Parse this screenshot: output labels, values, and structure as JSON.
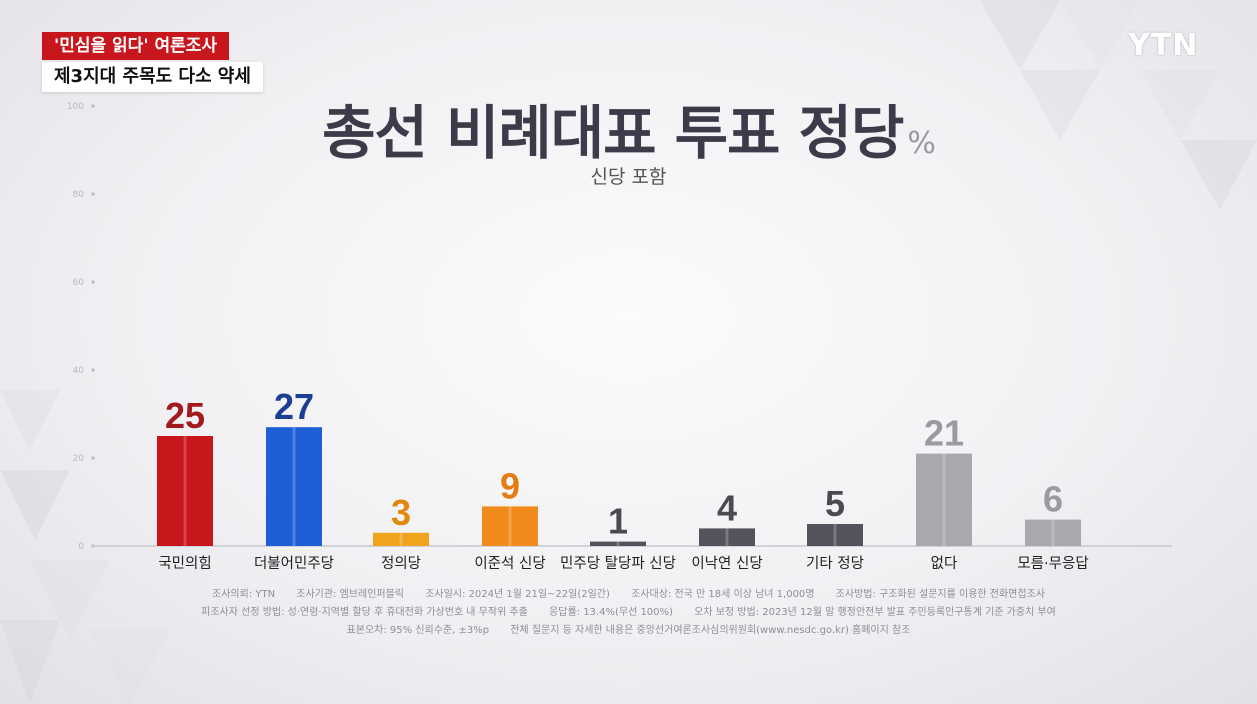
{
  "header": {
    "tag_primary": "'민심을 읽다' 여론조사",
    "tag_secondary": "제3지대 주목도 다소 약세",
    "logo": "YTN"
  },
  "chart_data": {
    "type": "bar",
    "title": "총선 비례대표 투표 정당",
    "unit": "%",
    "subtitle": "신당 포함",
    "categories": [
      "국민의힘",
      "더불어민주당",
      "정의당",
      "이준석 신당",
      "민주당 탈당파 신당",
      "이낙연 신당",
      "기타 정당",
      "없다",
      "모름·무응답"
    ],
    "values": [
      25,
      27,
      3,
      9,
      1,
      4,
      5,
      21,
      6
    ],
    "colors": [
      "#c8161d",
      "#1f5fd6",
      "#f0a41e",
      "#f08a1a",
      "#55545c",
      "#55545c",
      "#55545c",
      "#a8a8ad",
      "#a8a8ad"
    ],
    "label_colors": [
      "#a31a1e",
      "#1c3e94",
      "#e08a0c",
      "#e57c12",
      "#4a4a50",
      "#4a4a50",
      "#4a4a50",
      "#9a9aa0",
      "#9a9aa0"
    ],
    "yticks": [
      0,
      20,
      40,
      60,
      80,
      100
    ],
    "ylim": [
      0,
      100
    ],
    "grid": false,
    "legend": "none"
  },
  "notes": {
    "line1": [
      "조사의뢰: YTN",
      "조사기관: 엠브레인퍼블릭",
      "조사일시: 2024년 1월 21일~22일(2일간)",
      "조사대상: 전국 만 18세 이상 남녀 1,000명",
      "조사방법: 구조화된 설문지를 이용한 전화면접조사"
    ],
    "line2": [
      "피조사자 선정 방법: 성·연령·지역별 할당 후 휴대전화 가상번호 내 무작위 추출",
      "응답률: 13.4%(무선 100%)",
      "오차 보정 방법: 2023년 12월 말 행정안전부 발표 주민등록인구통계 기준 가중치 부여"
    ],
    "line3": [
      "표본오차: 95% 신뢰수준, ±3%p",
      "전체 질문지 등 자세한 내용은 중앙선거여론조사심의위원회(www.nesdc.go.kr) 홈페이지 참조"
    ]
  }
}
